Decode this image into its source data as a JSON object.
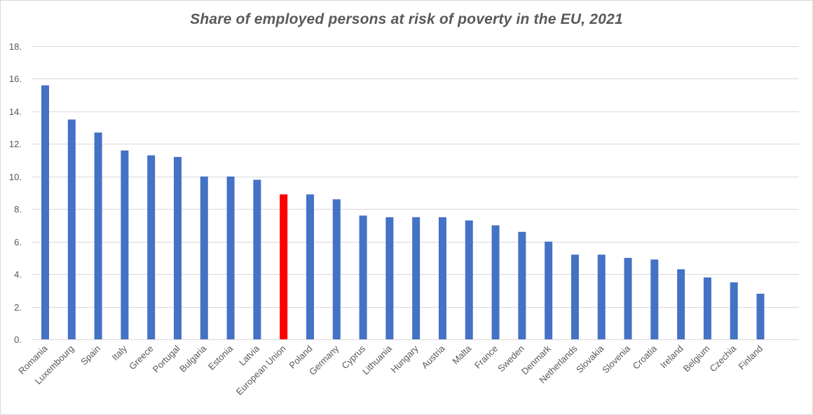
{
  "chart_data": {
    "type": "bar",
    "title": "Share of employed persons at risk of poverty in the EU, 2021",
    "xlabel": "",
    "ylabel": "",
    "ylim": [
      0,
      18
    ],
    "yticks": [
      "0.",
      "2.",
      "4.",
      "6.",
      "8.",
      "10.",
      "12.",
      "14.",
      "16.",
      "18."
    ],
    "grid": true,
    "categories": [
      "Romania",
      "Luxembourg",
      "Spain",
      "Italy",
      "Greece",
      "Portugal",
      "Bulgaria",
      "Estonia",
      "Latvia",
      "European Union",
      "Poland",
      "Germany",
      "Cyprus",
      "Lithuania",
      "Hungary",
      "Austria",
      "Malta",
      "France",
      "Sweden",
      "Denmark",
      "Netherlands",
      "Slovakia",
      "Slovenia",
      "Croatia",
      "Ireland",
      "Belgium",
      "Czechia",
      "Finland"
    ],
    "values": [
      15.6,
      13.5,
      12.7,
      11.6,
      11.3,
      11.2,
      10.0,
      10.0,
      9.8,
      8.9,
      8.9,
      8.6,
      7.6,
      7.5,
      7.5,
      7.5,
      7.3,
      7.0,
      6.6,
      6.0,
      5.2,
      5.2,
      5.0,
      4.9,
      4.3,
      3.8,
      3.5,
      2.8
    ],
    "colors": {
      "default": "#4472c4",
      "highlight": "#ff0000"
    },
    "highlight_category": "European Union"
  }
}
